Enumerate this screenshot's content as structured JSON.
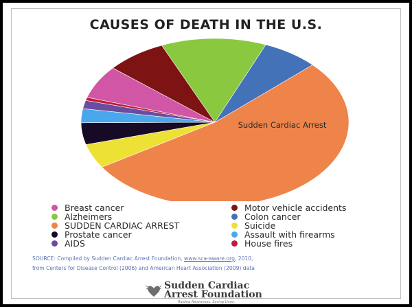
{
  "chart_data": {
    "type": "pie",
    "title": "CAUSES OF DEATH IN THE U.S.",
    "slices": [
      {
        "name": "Sudden Cardiac Arrest",
        "value": 53.0,
        "color": "#ee8449"
      },
      {
        "name": "Suicide",
        "value": 4.7,
        "color": "#ede135"
      },
      {
        "name": "Prostate cancer",
        "value": 4.2,
        "color": "#160a26"
      },
      {
        "name": "Assault with firearms",
        "value": 2.7,
        "color": "#4ba7eb"
      },
      {
        "name": "AIDS",
        "value": 1.6,
        "color": "#6b4c9e"
      },
      {
        "name": "House fires",
        "value": 0.6,
        "color": "#c01c3c"
      },
      {
        "name": "Breast cancer",
        "value": 6.4,
        "color": "#d256a6"
      },
      {
        "name": "Motor vehicle accidents",
        "value": 7.3,
        "color": "#7d1313"
      },
      {
        "name": "Alzheimers",
        "value": 12.7,
        "color": "#8ac840"
      },
      {
        "name": "Colon cancer",
        "value": 6.8,
        "color": "#4372b8"
      }
    ],
    "slice_label": "Sudden Cardiac Arrest"
  },
  "legend": {
    "left": [
      {
        "label": "Breast cancer",
        "color": "#d256a6"
      },
      {
        "label": "Alzheimers",
        "color": "#8ac840"
      },
      {
        "label": "SUDDEN CARDIAC ARREST",
        "color": "#ee8449"
      },
      {
        "label": "Prostate cancer",
        "color": "#160a26"
      },
      {
        "label": "AIDS",
        "color": "#6b4c9e"
      }
    ],
    "right": [
      {
        "label": "Motor vehicle accidents",
        "color": "#7d1313"
      },
      {
        "label": "Colon cancer",
        "color": "#4372b8"
      },
      {
        "label": "Suicide",
        "color": "#ede135"
      },
      {
        "label": "Assault with firearms",
        "color": "#4ba7eb"
      },
      {
        "label": "House fires",
        "color": "#c01c3c"
      }
    ]
  },
  "source": {
    "prefix": "SOURCE: Compiled by Sudden Cardiac Arrest Foundation, ",
    "link": "www.sca-aware.org",
    "suffix": ", 2010,",
    "line2": "from Centers for Disease Control (2006) and American Heart Association (2009) data"
  },
  "logo": {
    "line1": "Sudden Cardiac",
    "line2": "Arrest Foundation",
    "tagline": "Raising Awareness. Saving Lives.",
    "icon": "winged-heart-icon"
  }
}
